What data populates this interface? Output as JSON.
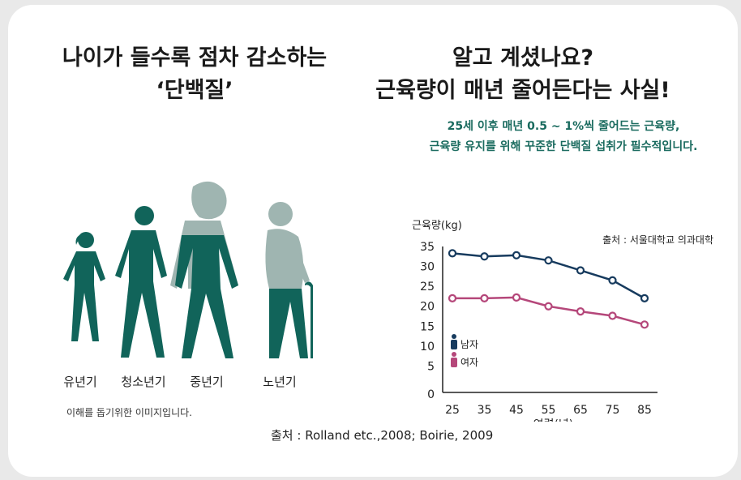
{
  "left": {
    "title_line1": "나이가 들수록 점차 감소하는",
    "title_line2": "‘단백질’",
    "stages": [
      "유년기",
      "청소년기",
      "중년기",
      "노년기"
    ],
    "note": "이해를 돕기위한 이미지입니다."
  },
  "right": {
    "title_line1": "알고 계셨나요?",
    "title_line2": "근육량이 매년 줄어든다는 사실!",
    "sub_line1": "25세 이후 매년 0.5 ~ 1%씩 줄어드는 근육량,",
    "sub_line2": "근육량 유지를 위해 꾸준한 단백질 섭취가 필수적입니다."
  },
  "footer_source": "출처 : Rolland etc.,2008; Boirie, 2009",
  "colors": {
    "teal": "#11645a",
    "teal_light": "#9fb5b1",
    "male": "#173b5e",
    "female": "#b5477a"
  },
  "chart_data": {
    "type": "line",
    "title": "",
    "source_note": "출처 : 서울대학교 의과대학",
    "ylabel": "근육량(kg)",
    "xlabel": "연령(년)",
    "x": [
      25,
      35,
      45,
      55,
      65,
      75,
      85
    ],
    "yticks": [
      0,
      5,
      10,
      15,
      20,
      25,
      30,
      35
    ],
    "ytick_labels": [
      "0",
      "5",
      "10",
      "15",
      "20",
      "25",
      "30",
      "35"
    ],
    "ylim": [
      0,
      35
    ],
    "series": [
      {
        "name": "남자",
        "color": "#173b5e",
        "values": [
          33.3,
          32.5,
          32.8,
          31.5,
          29.0,
          26.5,
          22.0
        ]
      },
      {
        "name": "여자",
        "color": "#b5477a",
        "values": [
          22.0,
          22.0,
          22.2,
          20.0,
          18.7,
          17.6,
          15.4
        ]
      }
    ],
    "legend_position": "left"
  }
}
